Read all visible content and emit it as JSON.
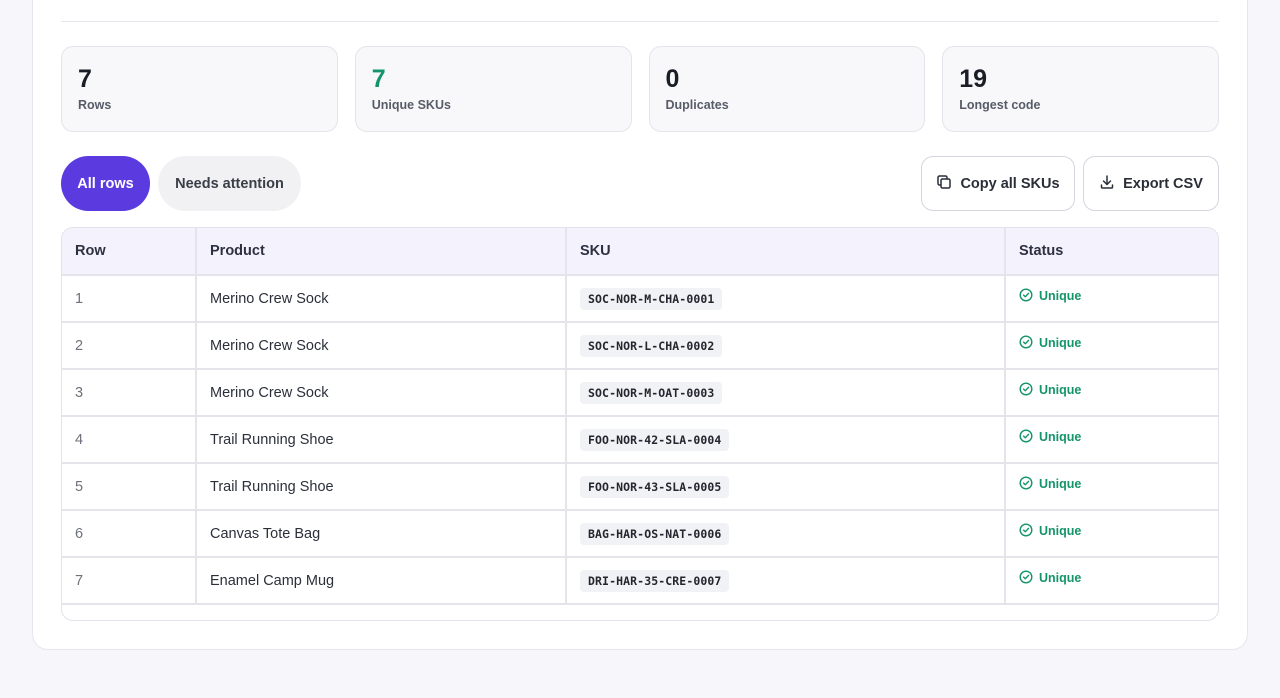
{
  "stats": [
    {
      "value": "7",
      "label": "Rows",
      "accent": false
    },
    {
      "value": "7",
      "label": "Unique SKUs",
      "accent": true
    },
    {
      "value": "0",
      "label": "Duplicates",
      "accent": false
    },
    {
      "value": "19",
      "label": "Longest code",
      "accent": false
    }
  ],
  "filters": {
    "all_rows": "All rows",
    "needs_attention": "Needs attention"
  },
  "actions": {
    "copy_label": "Copy all SKUs",
    "copy_icon": "copy-icon",
    "export_label": "Export CSV",
    "export_icon": "download-icon"
  },
  "table": {
    "headers": [
      "Row",
      "Product",
      "SKU",
      "Status"
    ],
    "rows": [
      {
        "row": "1",
        "product": "Merino Crew Sock",
        "sku": "SOC-NOR-M-CHA-0001",
        "status": "Unique"
      },
      {
        "row": "2",
        "product": "Merino Crew Sock",
        "sku": "SOC-NOR-L-CHA-0002",
        "status": "Unique"
      },
      {
        "row": "3",
        "product": "Merino Crew Sock",
        "sku": "SOC-NOR-M-OAT-0003",
        "status": "Unique"
      },
      {
        "row": "4",
        "product": "Trail Running Shoe",
        "sku": "FOO-NOR-42-SLA-0004",
        "status": "Unique"
      },
      {
        "row": "5",
        "product": "Trail Running Shoe",
        "sku": "FOO-NOR-43-SLA-0005",
        "status": "Unique"
      },
      {
        "row": "6",
        "product": "Canvas Tote Bag",
        "sku": "BAG-HAR-OS-NAT-0006",
        "status": "Unique"
      },
      {
        "row": "7",
        "product": "Enamel Camp Mug",
        "sku": "DRI-HAR-35-CRE-0007",
        "status": "Unique"
      }
    ]
  },
  "colors": {
    "accent": "#5b3be0",
    "success": "#14946a",
    "header_bg": "#f4f2fd"
  }
}
